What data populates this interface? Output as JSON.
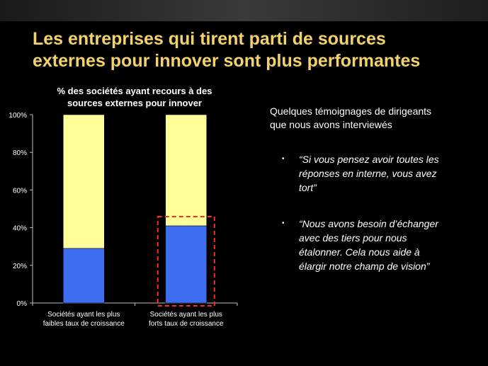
{
  "slide": {
    "title_line1": "Les entreprises qui tirent parti de sources",
    "title_line2": "externes pour innover sont plus performantes"
  },
  "chart_data": {
    "type": "bar",
    "stacked": true,
    "title_line1": "% des sociétés ayant recours à des",
    "title_line2": "sources externes pour innover",
    "categories": [
      [
        "Sociétés ayant les plus",
        "faibles taux de croissance"
      ],
      [
        "Sociétés ayant les plus",
        "forts taux de croissance"
      ]
    ],
    "series": [
      {
        "values": [
          29,
          41
        ],
        "color": "#3f6df0"
      },
      {
        "values": [
          71,
          59
        ],
        "color": "#ffff9a"
      }
    ],
    "y_ticks": [
      "0%",
      "20%",
      "40%",
      "60%",
      "80%",
      "100%"
    ],
    "ylim": [
      0,
      100
    ],
    "highlight_category": 1,
    "highlight_color": "#ff2a2a",
    "grid": false,
    "legend": "none"
  },
  "quotes": {
    "heading_line1": "Quelques témoignages de dirigeants",
    "heading_line2": "que nous avons interviewés",
    "bullet": "•",
    "items": [
      {
        "line1": "“Si vous pensez avoir toutes les",
        "line2": "réponses en interne, vous avez",
        "line3": "tort”"
      },
      {
        "line1": "“Nous avons besoin d’échanger",
        "line2": "avec des tiers pour nous",
        "line3": "étalonner. Cela nous aide à",
        "line4": "élargir notre champ de vision”"
      }
    ]
  }
}
